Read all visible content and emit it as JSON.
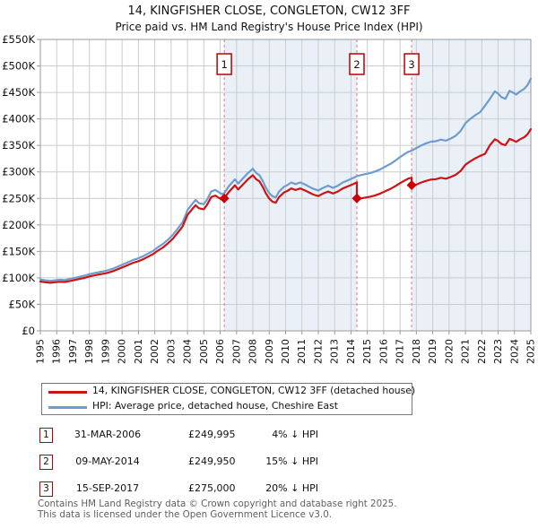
{
  "header": {
    "title": "14, KINGFISHER CLOSE, CONGLETON, CW12 3FF",
    "subtitle": "Price paid vs. HM Land Registry's House Price Index (HPI)"
  },
  "legend": {
    "items": [
      {
        "label": "14, KINGFISHER CLOSE, CONGLETON, CW12 3FF (detached house)",
        "color": "#cc1414"
      },
      {
        "label": "HPI: Average price, detached house, Cheshire East",
        "color": "#6f9cce"
      }
    ]
  },
  "sales_table": {
    "rows": [
      {
        "num": "1",
        "date": "31-MAR-2006",
        "price": "£249,995",
        "vs_hpi": "4% ↓ HPI"
      },
      {
        "num": "2",
        "date": "09-MAY-2014",
        "price": "£249,950",
        "vs_hpi": "15% ↓ HPI"
      },
      {
        "num": "3",
        "date": "15-SEP-2017",
        "price": "£275,000",
        "vs_hpi": "20% ↓ HPI"
      }
    ]
  },
  "footer": {
    "line1": "Contains HM Land Registry data © Crown copyright and database right 2025.",
    "line2": "This data is licensed under the Open Government Licence v3.0."
  },
  "chart_data": {
    "type": "line",
    "title": "14, KINGFISHER CLOSE, CONGLETON, CW12 3FF",
    "subtitle": "Price paid vs. HM Land Registry's House Price Index (HPI)",
    "x_axis": {
      "range": [
        1995,
        2025
      ],
      "ticks": [
        1995,
        1996,
        1997,
        1998,
        1999,
        2000,
        2001,
        2002,
        2003,
        2004,
        2005,
        2006,
        2007,
        2008,
        2009,
        2010,
        2011,
        2012,
        2013,
        2014,
        2015,
        2016,
        2017,
        2018,
        2019,
        2020,
        2021,
        2022,
        2023,
        2024,
        2025
      ],
      "tick_rotation": -90
    },
    "y_axis": {
      "unit": "GBP thousands",
      "range_k": [
        0,
        550
      ],
      "tick_step_k": 50,
      "tick_labels": [
        "£0",
        "£50K",
        "£100K",
        "£150K",
        "£200K",
        "£250K",
        "£300K",
        "£350K",
        "£400K",
        "£450K",
        "£500K",
        "£550K"
      ]
    },
    "grid": true,
    "grid_color": "#cccccc",
    "frame_color": "#999999",
    "band_color": "#eaf0f8",
    "shaded_bands_x": [
      [
        2006.25,
        2014.36
      ],
      [
        2017.71,
        2025.0
      ]
    ],
    "sale_line_color": "#e57373",
    "sale_marker_color": "#cc0000",
    "sale_box_border_color": "#bb0000",
    "sale_markers": [
      {
        "num": "1",
        "x": 2006.25,
        "price_k": 249.995
      },
      {
        "num": "2",
        "x": 2014.36,
        "price_k": 249.95
      },
      {
        "num": "3",
        "x": 2017.71,
        "price_k": 275.0
      }
    ],
    "series": [
      {
        "name": "HPI: Average price, detached house, Cheshire East",
        "color": "#6f9cce",
        "points": [
          [
            1995.0,
            97
          ],
          [
            1995.3,
            95.5
          ],
          [
            1995.6,
            94.5
          ],
          [
            1995.9,
            95.5
          ],
          [
            1996.2,
            96.5
          ],
          [
            1996.5,
            96.0
          ],
          [
            1996.8,
            98.0
          ],
          [
            1997.1,
            100.0
          ],
          [
            1997.4,
            102.0
          ],
          [
            1997.7,
            104.0
          ],
          [
            1998.0,
            107.0
          ],
          [
            1998.3,
            109.0
          ],
          [
            1998.6,
            111.0
          ],
          [
            1998.9,
            112.5
          ],
          [
            1999.2,
            115.0
          ],
          [
            1999.5,
            118.0
          ],
          [
            1999.8,
            122.0
          ],
          [
            2000.1,
            126.0
          ],
          [
            2000.4,
            130.0
          ],
          [
            2000.7,
            134.0
          ],
          [
            2001.0,
            137.0
          ],
          [
            2001.3,
            141.0
          ],
          [
            2001.6,
            146.0
          ],
          [
            2001.9,
            151.0
          ],
          [
            2002.2,
            158.0
          ],
          [
            2002.5,
            164.0
          ],
          [
            2002.8,
            172.0
          ],
          [
            2003.1,
            181.0
          ],
          [
            2003.4,
            193.0
          ],
          [
            2003.7,
            205.0
          ],
          [
            2004.0,
            228.0
          ],
          [
            2004.3,
            240.0
          ],
          [
            2004.5,
            247.0
          ],
          [
            2004.7,
            241.0
          ],
          [
            2005.0,
            239.0
          ],
          [
            2005.2,
            248.0
          ],
          [
            2005.45,
            263.0
          ],
          [
            2005.7,
            266.0
          ],
          [
            2005.9,
            262.0
          ],
          [
            2006.1,
            258.0
          ],
          [
            2006.25,
            260.0
          ],
          [
            2006.5,
            272.0
          ],
          [
            2006.9,
            286.0
          ],
          [
            2007.1,
            278.0
          ],
          [
            2007.4,
            288.0
          ],
          [
            2007.7,
            298.0
          ],
          [
            2008.0,
            306.0
          ],
          [
            2008.2,
            298.0
          ],
          [
            2008.4,
            294.0
          ],
          [
            2008.6,
            283.0
          ],
          [
            2008.8,
            270.0
          ],
          [
            2009.0,
            260.0
          ],
          [
            2009.2,
            254.0
          ],
          [
            2009.4,
            252.0
          ],
          [
            2009.6,
            263.0
          ],
          [
            2009.9,
            272.0
          ],
          [
            2010.1,
            275.0
          ],
          [
            2010.35,
            280.0
          ],
          [
            2010.6,
            277.0
          ],
          [
            2010.9,
            280.0
          ],
          [
            2011.2,
            276.0
          ],
          [
            2011.45,
            272.0
          ],
          [
            2011.7,
            268.0
          ],
          [
            2012.0,
            265.0
          ],
          [
            2012.3,
            270.0
          ],
          [
            2012.6,
            274.0
          ],
          [
            2012.9,
            270.0
          ],
          [
            2013.2,
            274.0
          ],
          [
            2013.5,
            280.0
          ],
          [
            2013.8,
            284.0
          ],
          [
            2014.1,
            288.0
          ],
          [
            2014.36,
            292.0
          ],
          [
            2014.6,
            294.0
          ],
          [
            2014.9,
            296.0
          ],
          [
            2015.2,
            298.0
          ],
          [
            2015.5,
            301.0
          ],
          [
            2015.8,
            305.0
          ],
          [
            2016.1,
            310.0
          ],
          [
            2016.4,
            315.0
          ],
          [
            2016.7,
            321.0
          ],
          [
            2017.0,
            328.0
          ],
          [
            2017.3,
            334.0
          ],
          [
            2017.5,
            338.0
          ],
          [
            2017.71,
            340.0
          ],
          [
            2018.0,
            345.0
          ],
          [
            2018.3,
            350.0
          ],
          [
            2018.6,
            354.0
          ],
          [
            2018.9,
            357.0
          ],
          [
            2019.2,
            358.0
          ],
          [
            2019.5,
            361.0
          ],
          [
            2019.8,
            359.0
          ],
          [
            2020.1,
            363.0
          ],
          [
            2020.4,
            368.0
          ],
          [
            2020.7,
            377.0
          ],
          [
            2021.0,
            392.0
          ],
          [
            2021.3,
            400.0
          ],
          [
            2021.6,
            407.0
          ],
          [
            2021.9,
            413.0
          ],
          [
            2022.2,
            425.0
          ],
          [
            2022.5,
            438.0
          ],
          [
            2022.8,
            452.0
          ],
          [
            2023.0,
            448.0
          ],
          [
            2023.2,
            441.0
          ],
          [
            2023.45,
            438.0
          ],
          [
            2023.7,
            453.0
          ],
          [
            2023.9,
            450.0
          ],
          [
            2024.1,
            446.0
          ],
          [
            2024.35,
            452.0
          ],
          [
            2024.6,
            457.0
          ],
          [
            2024.8,
            464.0
          ],
          [
            2025.0,
            476.0
          ]
        ]
      },
      {
        "name": "14, KINGFISHER CLOSE, CONGLETON, CW12 3FF (detached house)",
        "color": "#cc1414",
        "points": [
          [
            1995.0,
            93.1
          ],
          [
            1995.3,
            91.7
          ],
          [
            1995.6,
            90.7
          ],
          [
            1995.9,
            91.7
          ],
          [
            1996.2,
            92.6
          ],
          [
            1996.5,
            92.2
          ],
          [
            1996.8,
            94.1
          ],
          [
            1997.1,
            96.0
          ],
          [
            1997.4,
            97.9
          ],
          [
            1997.7,
            99.8
          ],
          [
            1998.0,
            102.7
          ],
          [
            1998.3,
            104.6
          ],
          [
            1998.6,
            106.6
          ],
          [
            1998.9,
            108.0
          ],
          [
            1999.2,
            110.4
          ],
          [
            1999.5,
            113.3
          ],
          [
            1999.8,
            117.1
          ],
          [
            2000.1,
            121.0
          ],
          [
            2000.4,
            124.8
          ],
          [
            2000.7,
            128.6
          ],
          [
            2001.0,
            131.5
          ],
          [
            2001.3,
            135.4
          ],
          [
            2001.6,
            140.2
          ],
          [
            2001.9,
            145.0
          ],
          [
            2002.2,
            151.7
          ],
          [
            2002.5,
            157.4
          ],
          [
            2002.8,
            165.1
          ],
          [
            2003.1,
            173.8
          ],
          [
            2003.4,
            185.3
          ],
          [
            2003.7,
            196.8
          ],
          [
            2004.0,
            218.9
          ],
          [
            2004.3,
            230.4
          ],
          [
            2004.5,
            237.1
          ],
          [
            2004.7,
            231.4
          ],
          [
            2005.0,
            229.4
          ],
          [
            2005.2,
            238.1
          ],
          [
            2005.45,
            252.5
          ],
          [
            2005.7,
            255.4
          ],
          [
            2005.9,
            251.5
          ],
          [
            2006.1,
            247.7
          ],
          [
            2006.25,
            249.6
          ],
          [
            2006.5,
            261.1
          ],
          [
            2006.9,
            274.6
          ],
          [
            2007.1,
            266.9
          ],
          [
            2007.4,
            276.5
          ],
          [
            2007.7,
            286.1
          ],
          [
            2008.0,
            293.8
          ],
          [
            2008.2,
            286.1
          ],
          [
            2008.4,
            282.2
          ],
          [
            2008.6,
            271.7
          ],
          [
            2008.8,
            259.2
          ],
          [
            2009.0,
            249.6
          ],
          [
            2009.2,
            243.8
          ],
          [
            2009.4,
            241.9
          ],
          [
            2009.6,
            252.5
          ],
          [
            2009.9,
            261.1
          ],
          [
            2010.1,
            264.0
          ],
          [
            2010.35,
            268.8
          ],
          [
            2010.6,
            265.9
          ],
          [
            2010.9,
            268.8
          ],
          [
            2011.2,
            264.9
          ],
          [
            2011.45,
            261.1
          ],
          [
            2011.7,
            257.3
          ],
          [
            2012.0,
            254.4
          ],
          [
            2012.3,
            259.2
          ],
          [
            2012.6,
            263.0
          ],
          [
            2012.9,
            259.2
          ],
          [
            2013.2,
            263.0
          ],
          [
            2013.5,
            268.8
          ],
          [
            2013.8,
            272.6
          ],
          [
            2014.1,
            276.5
          ],
          [
            2014.36,
            280.3
          ],
          [
            2014.36,
            248.2
          ],
          [
            2014.6,
            249.9
          ],
          [
            2014.9,
            251.6
          ],
          [
            2015.2,
            253.3
          ],
          [
            2015.5,
            255.9
          ],
          [
            2015.8,
            259.3
          ],
          [
            2016.1,
            263.5
          ],
          [
            2016.4,
            267.8
          ],
          [
            2016.7,
            272.9
          ],
          [
            2017.0,
            278.8
          ],
          [
            2017.3,
            283.9
          ],
          [
            2017.5,
            287.3
          ],
          [
            2017.71,
            289.0
          ],
          [
            2017.71,
            272.0
          ],
          [
            2018.0,
            276.0
          ],
          [
            2018.3,
            280.0
          ],
          [
            2018.6,
            283.2
          ],
          [
            2018.9,
            285.6
          ],
          [
            2019.2,
            286.4
          ],
          [
            2019.5,
            288.8
          ],
          [
            2019.8,
            287.2
          ],
          [
            2020.1,
            290.4
          ],
          [
            2020.4,
            294.4
          ],
          [
            2020.7,
            301.6
          ],
          [
            2021.0,
            313.6
          ],
          [
            2021.3,
            320.0
          ],
          [
            2021.6,
            325.6
          ],
          [
            2021.9,
            330.4
          ],
          [
            2022.2,
            334.0
          ],
          [
            2022.5,
            350.4
          ],
          [
            2022.8,
            361.6
          ],
          [
            2023.0,
            358.4
          ],
          [
            2023.2,
            352.8
          ],
          [
            2023.45,
            350.4
          ],
          [
            2023.7,
            362.4
          ],
          [
            2023.9,
            360.0
          ],
          [
            2024.1,
            356.8
          ],
          [
            2024.35,
            361.6
          ],
          [
            2024.6,
            365.6
          ],
          [
            2024.8,
            371.2
          ],
          [
            2025.0,
            380.8
          ]
        ]
      }
    ]
  }
}
